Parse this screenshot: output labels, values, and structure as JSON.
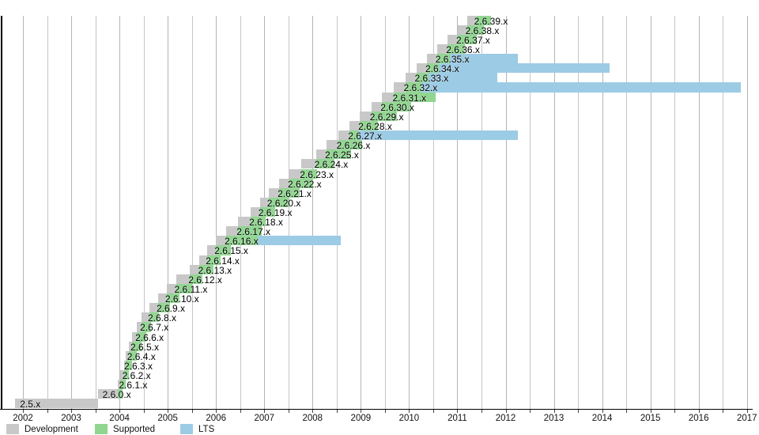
{
  "chart_data": {
    "type": "gantt",
    "title": "",
    "x_axis": {
      "start_year": 2002,
      "end_year": 2017,
      "minor_tick_step_years": 0.5,
      "year_labels": [
        "2002",
        "2003",
        "2004",
        "2005",
        "2006",
        "2007",
        "2008",
        "2009",
        "2010",
        "2011",
        "2012",
        "2013",
        "2014",
        "2015",
        "2016",
        "2017"
      ]
    },
    "legend_position": "bottom-left",
    "grid": true,
    "colors": {
      "development": "#c8c8c8",
      "supported": "#90d690",
      "lts": "#9ccbe5",
      "grid": "#c6c6c6",
      "axis": "#000000"
    },
    "legend": [
      {
        "label": "Development",
        "color": "#c8c8c8"
      },
      {
        "label": "Supported",
        "color": "#90d690"
      },
      {
        "label": "LTS",
        "color": "#9ccbe5"
      }
    ],
    "rows": [
      {
        "version": "2.5.x",
        "dev": [
          2001.84,
          2003.55
        ]
      },
      {
        "version": "2.6.0.x",
        "dev": [
          2003.55,
          2003.96
        ],
        "supported": [
          2003.96,
          2004.06
        ]
      },
      {
        "version": "2.6.1.x",
        "dev": [
          2003.96,
          2004.02
        ],
        "supported": [
          2004.02,
          2004.13
        ]
      },
      {
        "version": "2.6.2.x",
        "dev": [
          2004.02,
          2004.09
        ],
        "supported": [
          2004.09,
          2004.19
        ]
      },
      {
        "version": "2.6.3.x",
        "dev": [
          2004.09,
          2004.13
        ],
        "supported": [
          2004.13,
          2004.26
        ]
      },
      {
        "version": "2.6.4.x",
        "dev": [
          2004.13,
          2004.19
        ],
        "supported": [
          2004.19,
          2004.36
        ]
      },
      {
        "version": "2.6.5.x",
        "dev": [
          2004.19,
          2004.26
        ],
        "supported": [
          2004.26,
          2004.46
        ]
      },
      {
        "version": "2.6.6.x",
        "dev": [
          2004.26,
          2004.36
        ],
        "supported": [
          2004.36,
          2004.56
        ]
      },
      {
        "version": "2.6.7.x",
        "dev": [
          2004.36,
          2004.46
        ],
        "supported": [
          2004.46,
          2004.66
        ]
      },
      {
        "version": "2.6.8.x",
        "dev": [
          2004.46,
          2004.62
        ],
        "supported": [
          2004.62,
          2004.82
        ]
      },
      {
        "version": "2.6.9.x",
        "dev": [
          2004.62,
          2004.8
        ],
        "supported": [
          2004.8,
          2005.05
        ]
      },
      {
        "version": "2.6.10.x",
        "dev": [
          2004.8,
          2004.98
        ],
        "supported": [
          2004.98,
          2005.25
        ]
      },
      {
        "version": "2.6.11.x",
        "dev": [
          2004.98,
          2005.17
        ],
        "supported": [
          2005.17,
          2005.5
        ]
      },
      {
        "version": "2.6.12.x",
        "dev": [
          2005.17,
          2005.46
        ],
        "supported": [
          2005.46,
          2005.72
        ]
      },
      {
        "version": "2.6.13.x",
        "dev": [
          2005.46,
          2005.66
        ],
        "supported": [
          2005.66,
          2005.95
        ]
      },
      {
        "version": "2.6.14.x",
        "dev": [
          2005.66,
          2005.82
        ],
        "supported": [
          2005.82,
          2006.1
        ]
      },
      {
        "version": "2.6.15.x",
        "dev": [
          2005.82,
          2006.0
        ],
        "supported": [
          2006.0,
          2006.3
        ]
      },
      {
        "version": "2.6.16.x",
        "dev": [
          2006.0,
          2006.21
        ],
        "supported": [
          2006.21,
          2006.86
        ],
        "lts": [
          2006.86,
          2008.58
        ]
      },
      {
        "version": "2.6.17.x",
        "dev": [
          2006.21,
          2006.46
        ],
        "supported": [
          2006.46,
          2006.95
        ]
      },
      {
        "version": "2.6.18.x",
        "dev": [
          2006.46,
          2006.72
        ],
        "supported": [
          2006.72,
          2007.03
        ]
      },
      {
        "version": "2.6.19.x",
        "dev": [
          2006.72,
          2006.91
        ],
        "supported": [
          2006.91,
          2007.22
        ]
      },
      {
        "version": "2.6.20.x",
        "dev": [
          2006.91,
          2007.09
        ],
        "supported": [
          2007.09,
          2007.52
        ]
      },
      {
        "version": "2.6.21.x",
        "dev": [
          2007.09,
          2007.31
        ],
        "supported": [
          2007.31,
          2007.73
        ]
      },
      {
        "version": "2.6.22.x",
        "dev": [
          2007.31,
          2007.52
        ],
        "supported": [
          2007.52,
          2008.01
        ]
      },
      {
        "version": "2.6.23.x",
        "dev": [
          2007.52,
          2007.77
        ],
        "supported": [
          2007.77,
          2008.09
        ]
      },
      {
        "version": "2.6.24.x",
        "dev": [
          2007.77,
          2008.07
        ],
        "supported": [
          2008.07,
          2008.45
        ]
      },
      {
        "version": "2.6.25.x",
        "dev": [
          2008.07,
          2008.29
        ],
        "supported": [
          2008.29,
          2008.8
        ]
      },
      {
        "version": "2.6.26.x",
        "dev": [
          2008.29,
          2008.53
        ],
        "supported": [
          2008.53,
          2009.02
        ]
      },
      {
        "version": "2.6.27.x",
        "dev": [
          2008.53,
          2008.77
        ],
        "supported": [
          2008.77,
          2008.95
        ],
        "lts": [
          2008.95,
          2012.25
        ]
      },
      {
        "version": "2.6.28.x",
        "dev": [
          2008.77,
          2008.98
        ],
        "supported": [
          2008.98,
          2009.35
        ]
      },
      {
        "version": "2.6.29.x",
        "dev": [
          2008.98,
          2009.22
        ],
        "supported": [
          2009.22,
          2009.75
        ]
      },
      {
        "version": "2.6.30.x",
        "dev": [
          2009.22,
          2009.44
        ],
        "supported": [
          2009.44,
          2010.05
        ]
      },
      {
        "version": "2.6.31.x",
        "dev": [
          2009.44,
          2009.69
        ],
        "supported": [
          2009.69,
          2010.55
        ]
      },
      {
        "version": "2.6.32.x",
        "dev": [
          2009.69,
          2009.92
        ],
        "supported": [
          2009.92,
          2010.25
        ],
        "lts": [
          2010.25,
          2016.88
        ]
      },
      {
        "version": "2.6.33.x",
        "dev": [
          2009.92,
          2010.15
        ],
        "supported": [
          2010.15,
          2010.4
        ],
        "lts": [
          2010.4,
          2011.83
        ]
      },
      {
        "version": "2.6.34.x",
        "dev": [
          2010.15,
          2010.37
        ],
        "supported": [
          2010.37,
          2010.62
        ],
        "lts": [
          2010.62,
          2014.15
        ]
      },
      {
        "version": "2.6.35.x",
        "dev": [
          2010.37,
          2010.58
        ],
        "supported": [
          2010.58,
          2010.85
        ],
        "lts": [
          2010.85,
          2012.25
        ]
      },
      {
        "version": "2.6.36.x",
        "dev": [
          2010.58,
          2010.8
        ],
        "supported": [
          2010.8,
          2011.15
        ]
      },
      {
        "version": "2.6.37.x",
        "dev": [
          2010.8,
          2011.01
        ],
        "supported": [
          2011.01,
          2011.4
        ]
      },
      {
        "version": "2.6.38.x",
        "dev": [
          2011.01,
          2011.2
        ],
        "supported": [
          2011.2,
          2011.55
        ]
      },
      {
        "version": "2.6.39.x",
        "dev": [
          2011.2,
          2011.38
        ],
        "supported": [
          2011.38,
          2011.7
        ]
      }
    ]
  }
}
